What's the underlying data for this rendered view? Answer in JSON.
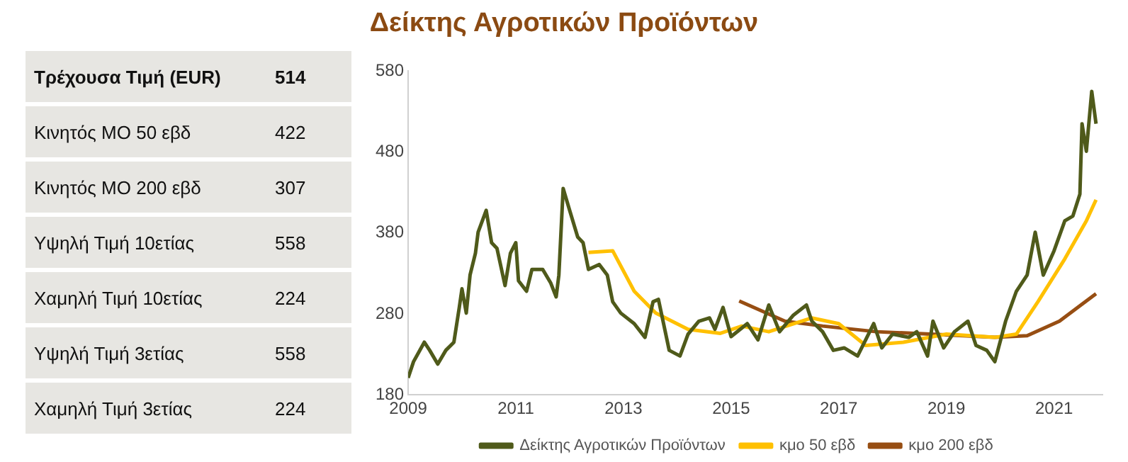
{
  "chart_data": [
    {
      "type": "other",
      "categories": [
        "Τρέχουσα Τιμή (EUR)",
        "Κινητός ΜΟ 50 εβδ",
        "Κινητός ΜΟ 200 εβδ",
        "Υψηλή Τιμή 10ετίας",
        "Χαμηλή Τιμή 10ετίας",
        "Υψηλή Τιμή 3ετίας",
        "Χαμηλή Τιμή 3ετίας"
      ],
      "values": [
        514,
        422,
        307,
        558,
        224,
        558,
        224
      ],
      "data_labels": true
    },
    {
      "type": "line",
      "title": "Δείκτης Αγροτικών Προϊόντων",
      "xlim": [
        2009,
        2021.9
      ],
      "xticks": [
        2009,
        2011,
        2013,
        2015,
        2017,
        2019,
        2021
      ],
      "ylim": [
        180,
        580
      ],
      "yticks": [
        180,
        280,
        380,
        480,
        580
      ],
      "grid": false,
      "legend": "bottom",
      "marker": "none",
      "line_style": "solid",
      "series": [
        {
          "name": "Δείκτης Αγροτικών Προϊόντων",
          "color": "#4f5a1a",
          "x": [
            2009.0,
            2009.1,
            2009.3,
            2009.4,
            2009.55,
            2009.7,
            2009.85,
            2009.95,
            2010.0,
            2010.08,
            2010.15,
            2010.25,
            2010.3,
            2010.45,
            2010.55,
            2010.65,
            2010.8,
            2010.9,
            2011.0,
            2011.05,
            2011.2,
            2011.3,
            2011.5,
            2011.65,
            2011.75,
            2011.8,
            2011.88,
            2012.0,
            2012.15,
            2012.25,
            2012.35,
            2012.55,
            2012.7,
            2012.8,
            2012.95,
            2013.2,
            2013.4,
            2013.55,
            2013.65,
            2013.85,
            2014.05,
            2014.2,
            2014.4,
            2014.6,
            2014.7,
            2014.85,
            2015.0,
            2015.3,
            2015.5,
            2015.7,
            2015.9,
            2016.15,
            2016.4,
            2016.5,
            2016.7,
            2016.9,
            2017.1,
            2017.35,
            2017.5,
            2017.65,
            2017.8,
            2018.0,
            2018.3,
            2018.45,
            2018.65,
            2018.75,
            2018.95,
            2019.15,
            2019.4,
            2019.55,
            2019.75,
            2019.9,
            2020.1,
            2020.3,
            2020.5,
            2020.65,
            2020.8,
            2021.0,
            2021.2,
            2021.35,
            2021.48,
            2021.52,
            2021.6,
            2021.7,
            2021.78
          ],
          "values": [
            201,
            221,
            245,
            235,
            218,
            235,
            245,
            288,
            311,
            281,
            328,
            355,
            381,
            408,
            368,
            361,
            315,
            355,
            368,
            321,
            308,
            335,
            335,
            318,
            301,
            328,
            435,
            408,
            375,
            368,
            335,
            341,
            328,
            295,
            281,
            268,
            251,
            295,
            298,
            235,
            228,
            255,
            271,
            275,
            261,
            288,
            252,
            268,
            248,
            291,
            258,
            278,
            291,
            271,
            258,
            235,
            238,
            228,
            248,
            268,
            238,
            255,
            251,
            258,
            228,
            271,
            238,
            258,
            271,
            241,
            235,
            221,
            271,
            308,
            328,
            381,
            328,
            358,
            395,
            401,
            428,
            515,
            481,
            555,
            515
          ]
        },
        {
          "name": "κμο 50 εβδ",
          "color": "#ffc000",
          "x": [
            2012.35,
            2012.8,
            2013.2,
            2013.6,
            2014.2,
            2014.8,
            2015.2,
            2015.7,
            2016.5,
            2017.0,
            2017.5,
            2018.2,
            2019.0,
            2019.9,
            2020.3,
            2020.7,
            2021.2,
            2021.6,
            2021.78
          ],
          "values": [
            356,
            358,
            308,
            281,
            261,
            256,
            265,
            258,
            275,
            268,
            241,
            245,
            255,
            251,
            255,
            295,
            348,
            395,
            421
          ]
        },
        {
          "name": "κμο 200 εβδ",
          "color": "#974e13",
          "x": [
            2015.15,
            2016.0,
            2016.7,
            2017.7,
            2018.7,
            2019.9,
            2020.5,
            2021.1,
            2021.78
          ],
          "values": [
            296,
            271,
            265,
            258,
            255,
            251,
            253,
            271,
            305
          ]
        }
      ]
    }
  ]
}
